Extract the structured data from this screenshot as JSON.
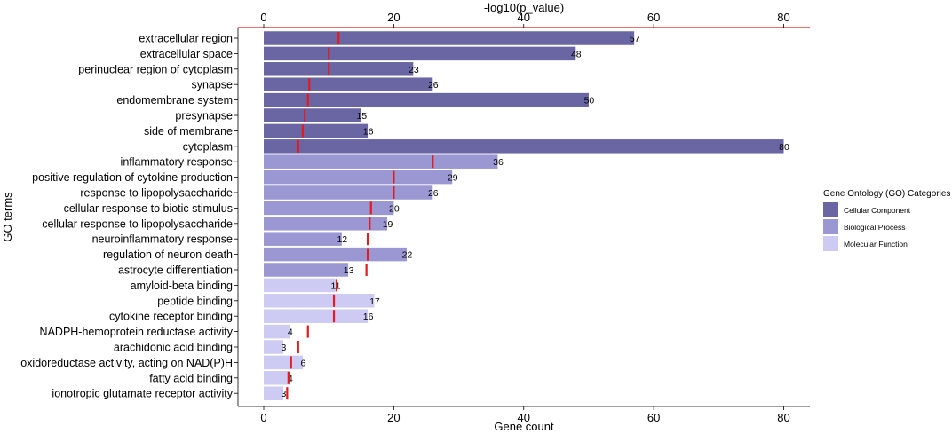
{
  "chart_data": {
    "type": "bar",
    "orientation": "horizontal",
    "ylabel": "GO terms",
    "xlabel": "Gene count",
    "top_axis_label": "-log10(p_value)",
    "bottom_ticks": [
      0,
      20,
      40,
      60,
      80
    ],
    "top_ticks": [
      0,
      20,
      40,
      60,
      80
    ],
    "xlim": [
      0,
      84
    ],
    "top_xlim": [
      0,
      84
    ],
    "legend": {
      "title": "Gene Ontology (GO) Categories",
      "position": "right",
      "entries": [
        {
          "label": "Cellular Component",
          "color": "#6a66a3"
        },
        {
          "label": "Biological Process",
          "color": "#9b97d2"
        },
        {
          "label": "Molecular Function",
          "color": "#cdcaf4"
        }
      ]
    },
    "marker_color": "#e41a1c",
    "top_axis_line_color": "#e41a1c",
    "terms": [
      {
        "label": "extracellular region",
        "count": 57,
        "neglog10p": 11.5,
        "category": "Cellular Component"
      },
      {
        "label": "extracellular space",
        "count": 48,
        "neglog10p": 10.0,
        "category": "Cellular Component"
      },
      {
        "label": "perinuclear region of cytoplasm",
        "count": 23,
        "neglog10p": 10.0,
        "category": "Cellular Component"
      },
      {
        "label": "synapse",
        "count": 26,
        "neglog10p": 7.0,
        "category": "Cellular Component"
      },
      {
        "label": "endomembrane system",
        "count": 50,
        "neglog10p": 6.8,
        "category": "Cellular Component"
      },
      {
        "label": "presynapse",
        "count": 15,
        "neglog10p": 6.3,
        "category": "Cellular Component"
      },
      {
        "label": "side of membrane",
        "count": 16,
        "neglog10p": 6.0,
        "category": "Cellular Component"
      },
      {
        "label": "cytoplasm",
        "count": 80,
        "neglog10p": 5.3,
        "category": "Cellular Component"
      },
      {
        "label": "inflammatory response",
        "count": 36,
        "neglog10p": 26.0,
        "category": "Biological Process"
      },
      {
        "label": "positive regulation of cytokine production",
        "count": 29,
        "neglog10p": 20.0,
        "category": "Biological Process"
      },
      {
        "label": "response to lipopolysaccharide",
        "count": 26,
        "neglog10p": 20.0,
        "category": "Biological Process"
      },
      {
        "label": "cellular response to biotic stimulus",
        "count": 20,
        "neglog10p": 16.5,
        "category": "Biological Process"
      },
      {
        "label": "cellular response to lipopolysaccharide",
        "count": 19,
        "neglog10p": 16.3,
        "category": "Biological Process"
      },
      {
        "label": "neuroinflammatory response",
        "count": 12,
        "neglog10p": 16.0,
        "category": "Biological Process"
      },
      {
        "label": "regulation of neuron death",
        "count": 22,
        "neglog10p": 16.0,
        "category": "Biological Process"
      },
      {
        "label": "astrocyte differentiation",
        "count": 13,
        "neglog10p": 15.8,
        "category": "Biological Process"
      },
      {
        "label": "amyloid-beta binding",
        "count": 11,
        "neglog10p": 11.2,
        "category": "Molecular Function"
      },
      {
        "label": "peptide binding",
        "count": 17,
        "neglog10p": 10.8,
        "category": "Molecular Function"
      },
      {
        "label": "cytokine receptor binding",
        "count": 16,
        "neglog10p": 10.8,
        "category": "Molecular Function"
      },
      {
        "label": "NADPH-hemoprotein reductase activity",
        "count": 4,
        "neglog10p": 6.8,
        "category": "Molecular Function"
      },
      {
        "label": "arachidonic acid binding",
        "count": 3,
        "neglog10p": 5.3,
        "category": "Molecular Function"
      },
      {
        "label": "oxidoreductase activity, acting on NAD(P)H",
        "count": 6,
        "neglog10p": 4.2,
        "category": "Molecular Function"
      },
      {
        "label": "fatty acid binding",
        "count": 4,
        "neglog10p": 3.8,
        "category": "Molecular Function"
      },
      {
        "label": "ionotropic glutamate receptor activity",
        "count": 3,
        "neglog10p": 3.6,
        "category": "Molecular Function"
      }
    ]
  }
}
